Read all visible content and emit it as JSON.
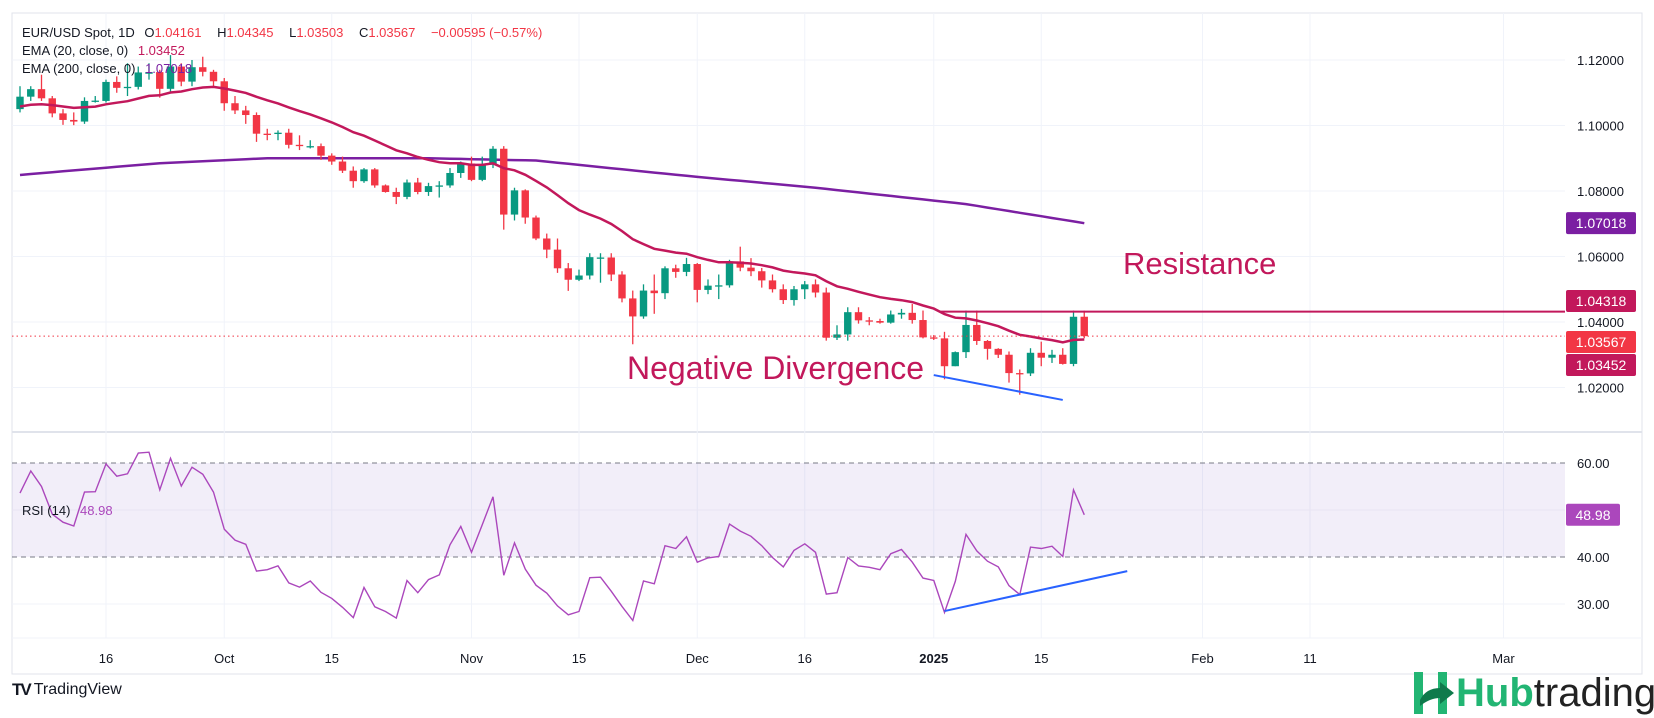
{
  "legend": {
    "symbol": "EUR/USD Spot, 1D",
    "open_label": "O",
    "open": "1.04161",
    "high_label": "H",
    "high": "1.04345",
    "low_label": "L",
    "low": "1.03503",
    "close_label": "C",
    "close": "1.03567",
    "change": "−0.00595 (−0.57%)",
    "ema20_label": "EMA (20, close, 0)",
    "ema20_value": "1.03452",
    "ema200_label": "EMA (200, close, 0)",
    "ema200_value": "1.07018"
  },
  "rsi_legend": {
    "label": "RSI (14)",
    "value": "48.98"
  },
  "annotations": {
    "resistance": "Resistance",
    "divergence": "Negative Divergence"
  },
  "footer": {
    "tradingview": "TradingView",
    "tv_mark": "TV",
    "hub_green": "Hub",
    "hub_dark": "trading"
  },
  "colors": {
    "up": "#089981",
    "down": "#f23645",
    "ema20": "#c2185b",
    "ema200": "#7b1fa2",
    "rsi": "#ab47bc",
    "trend": "#2962ff",
    "resistance": "#c2185b"
  },
  "chart_data": [
    {
      "type": "candlestick",
      "title": "EUR/USD Spot, 1D",
      "ylim": [
        1.005,
        1.1317
      ],
      "y_ticks": [
        "1.12000",
        "1.10000",
        "1.08000",
        "1.06000",
        "1.04000",
        "1.02000"
      ],
      "y_tick_values": [
        1.12,
        1.1,
        1.08,
        1.06,
        1.04,
        1.02
      ],
      "x_ticks": [
        {
          "label": "16",
          "index": 0
        },
        {
          "label": "Oct",
          "index": 11
        },
        {
          "label": "15",
          "index": 21
        },
        {
          "label": "Nov",
          "index": 34
        },
        {
          "label": "15",
          "index": 44
        },
        {
          "label": "Dec",
          "index": 55
        },
        {
          "label": "16",
          "index": 65
        },
        {
          "label": "2025",
          "index": 77,
          "bold": true
        },
        {
          "label": "15",
          "index": 87
        },
        {
          "label": "Feb",
          "index": 102
        },
        {
          "label": "11",
          "index": 112
        },
        {
          "label": "Mar",
          "index": 130
        }
      ],
      "first_index": -8,
      "candles": [
        [
          1.105,
          1.112,
          1.104,
          1.1088
        ],
        [
          1.1088,
          1.112,
          1.1075,
          1.1111
        ],
        [
          1.1111,
          1.1155,
          1.1075,
          1.1083
        ],
        [
          1.1083,
          1.109,
          1.1025,
          1.1037
        ],
        [
          1.1037,
          1.105,
          1.1002,
          1.1017
        ],
        [
          1.1017,
          1.104,
          1.1001,
          1.1012
        ],
        [
          1.1012,
          1.1086,
          1.1005,
          1.1075
        ],
        [
          1.1075,
          1.109,
          1.107,
          1.1076
        ],
        [
          1.1075,
          1.114,
          1.107,
          1.1133
        ],
        [
          1.1133,
          1.115,
          1.11,
          1.1115
        ],
        [
          1.1115,
          1.119,
          1.109,
          1.1118
        ],
        [
          1.1118,
          1.118,
          1.111,
          1.1162
        ],
        [
          1.1158,
          1.119,
          1.114,
          1.1163
        ],
        [
          1.1163,
          1.117,
          1.1085,
          1.1112
        ],
        [
          1.1112,
          1.1215,
          1.11,
          1.118
        ],
        [
          1.118,
          1.119,
          1.112,
          1.1134
        ],
        [
          1.1134,
          1.12,
          1.112,
          1.1178
        ],
        [
          1.1178,
          1.121,
          1.115,
          1.1164
        ],
        [
          1.1164,
          1.117,
          1.112,
          1.1135
        ],
        [
          1.1135,
          1.1145,
          1.1045,
          1.1068
        ],
        [
          1.1068,
          1.109,
          1.1035,
          1.1046
        ],
        [
          1.1046,
          1.106,
          1.1005,
          1.1032
        ],
        [
          1.1032,
          1.104,
          1.095,
          1.0975
        ],
        [
          1.0975,
          1.099,
          1.0955,
          1.0974
        ],
        [
          1.0974,
          1.0985,
          1.0955,
          1.0978
        ],
        [
          1.0978,
          1.099,
          1.093,
          1.0941
        ],
        [
          1.0941,
          1.097,
          1.0925,
          1.0937
        ],
        [
          1.0936,
          1.0955,
          1.093,
          1.0937
        ],
        [
          1.0937,
          1.0945,
          1.0895,
          1.0908
        ],
        [
          1.0908,
          1.0915,
          1.088,
          1.089
        ],
        [
          1.089,
          1.0905,
          1.0855,
          1.0862
        ],
        [
          1.0862,
          1.0875,
          1.081,
          1.083
        ],
        [
          1.083,
          1.087,
          1.0825,
          1.0866
        ],
        [
          1.0866,
          1.087,
          1.081,
          1.0817
        ],
        [
          1.0817,
          1.082,
          1.0795,
          1.0797
        ],
        [
          1.0797,
          1.081,
          1.076,
          1.0782
        ],
        [
          1.0782,
          1.0835,
          1.0775,
          1.0826
        ],
        [
          1.0826,
          1.084,
          1.079,
          1.0797
        ],
        [
          1.0797,
          1.0825,
          1.0785,
          1.0815
        ],
        [
          1.0815,
          1.083,
          1.078,
          1.0817
        ],
        [
          1.0817,
          1.087,
          1.081,
          1.0855
        ],
        [
          1.0855,
          1.089,
          1.084,
          1.0884
        ],
        [
          1.0884,
          1.0905,
          1.083,
          1.0834
        ],
        [
          1.0834,
          1.0905,
          1.083,
          1.088
        ],
        [
          1.088,
          1.0937,
          1.087,
          1.0929
        ],
        [
          1.0929,
          1.0937,
          1.0682,
          1.0728
        ],
        [
          1.0728,
          1.081,
          1.071,
          1.0802
        ],
        [
          1.0802,
          1.0805,
          1.07,
          1.0719
        ],
        [
          1.0719,
          1.0725,
          1.065,
          1.0655
        ],
        [
          1.0655,
          1.067,
          1.0595,
          1.0621
        ],
        [
          1.0621,
          1.0655,
          1.055,
          1.0564
        ],
        [
          1.0564,
          1.058,
          1.0495,
          1.0529
        ],
        [
          1.0529,
          1.056,
          1.0525,
          1.0542
        ],
        [
          1.0542,
          1.061,
          1.053,
          1.0598
        ],
        [
          1.0596,
          1.061,
          1.052,
          1.0597
        ],
        [
          1.0597,
          1.061,
          1.0525,
          1.0545
        ],
        [
          1.0545,
          1.0555,
          1.046,
          1.0472
        ],
        [
          1.0472,
          1.0496,
          1.0332,
          1.0417
        ],
        [
          1.0417,
          1.0515,
          1.041,
          1.0496
        ],
        [
          1.0496,
          1.0545,
          1.0425,
          1.0488
        ],
        [
          1.0488,
          1.057,
          1.047,
          1.0564
        ],
        [
          1.0564,
          1.0575,
          1.0535,
          1.0553
        ],
        [
          1.0553,
          1.0596,
          1.054,
          1.0577
        ],
        [
          1.0577,
          1.058,
          1.046,
          1.0498
        ],
        [
          1.0498,
          1.053,
          1.0485,
          1.0511
        ],
        [
          1.0509,
          1.0545,
          1.047,
          1.0512
        ],
        [
          1.0512,
          1.059,
          1.0505,
          1.0585
        ],
        [
          1.0585,
          1.063,
          1.0555,
          1.0566
        ],
        [
          1.0566,
          1.0595,
          1.054,
          1.0555
        ],
        [
          1.0555,
          1.0565,
          1.0505,
          1.0527
        ],
        [
          1.0527,
          1.0545,
          1.049,
          1.05
        ],
        [
          1.05,
          1.0515,
          1.0455,
          1.0467
        ],
        [
          1.0467,
          1.051,
          1.045,
          1.05
        ],
        [
          1.05,
          1.0525,
          1.047,
          1.0515
        ],
        [
          1.0515,
          1.053,
          1.0475,
          1.049
        ],
        [
          1.049,
          1.0505,
          1.0343,
          1.0352
        ],
        [
          1.0352,
          1.039,
          1.0345,
          1.0362
        ],
        [
          1.0362,
          1.0445,
          1.0343,
          1.043
        ],
        [
          1.043,
          1.0445,
          1.0395,
          1.0405
        ],
        [
          1.0405,
          1.0415,
          1.039,
          1.0403
        ],
        [
          1.0403,
          1.041,
          1.0395,
          1.0398
        ],
        [
          1.0398,
          1.0435,
          1.0395,
          1.0423
        ],
        [
          1.0423,
          1.044,
          1.041,
          1.0428
        ],
        [
          1.0428,
          1.0455,
          1.0395,
          1.0406
        ],
        [
          1.0406,
          1.0435,
          1.035,
          1.0353
        ],
        [
          1.0353,
          1.036,
          1.0345,
          1.035
        ],
        [
          1.035,
          1.037,
          1.0225,
          1.0265
        ],
        [
          1.0265,
          1.031,
          1.0265,
          1.0308
        ],
        [
          1.0308,
          1.0435,
          1.029,
          1.0391
        ],
        [
          1.0391,
          1.0435,
          1.033,
          1.0342
        ],
        [
          1.0342,
          1.0345,
          1.0285,
          1.0318
        ],
        [
          1.0318,
          1.032,
          1.029,
          1.03
        ],
        [
          1.03,
          1.031,
          1.0215,
          1.0244
        ],
        [
          1.0244,
          1.0255,
          1.0178,
          1.0243
        ],
        [
          1.0243,
          1.032,
          1.0235,
          1.0306
        ],
        [
          1.0306,
          1.034,
          1.0265,
          1.0291
        ],
        [
          1.0291,
          1.0315,
          1.0275,
          1.03
        ],
        [
          1.03,
          1.032,
          1.027,
          1.0272
        ],
        [
          1.0272,
          1.0435,
          1.0265,
          1.0416
        ],
        [
          1.04161,
          1.04345,
          1.03503,
          1.03567
        ]
      ],
      "ema20_seed": 1.1055,
      "ema200_points": [
        [
          -8,
          1.0849
        ],
        [
          5,
          1.0885
        ],
        [
          15,
          1.09
        ],
        [
          30,
          1.09
        ],
        [
          40,
          1.0893
        ],
        [
          55,
          1.0843
        ],
        [
          66,
          1.081
        ],
        [
          80,
          1.076
        ],
        [
          91,
          1.07018
        ]
      ],
      "resistance": {
        "value": 1.04318,
        "from_index": 77
      },
      "trendline": {
        "from": [
          77,
          1.0238
        ],
        "to": [
          89,
          1.0162
        ]
      },
      "price_badges": [
        {
          "value": 1.07018,
          "label": "1.07018",
          "color": "#7b1fa2"
        },
        {
          "value": 1.04318,
          "label": "1.04318",
          "color": "#c2185b"
        },
        {
          "value": 1.03567,
          "label": "1.03567",
          "color": "#f23645"
        },
        {
          "value": 1.03452,
          "label": "1.03452",
          "color": "#c2185b"
        }
      ]
    },
    {
      "type": "line",
      "title": "RSI (14)",
      "ylim": [
        22,
        65
      ],
      "y_ticks": [
        "60.00",
        "40.00",
        "30.00"
      ],
      "y_tick_values": [
        60,
        40,
        30
      ],
      "band": [
        40,
        60
      ],
      "first_index": -8,
      "values": [
        53.6,
        58.3,
        55.0,
        49.1,
        47.4,
        46.6,
        53.8,
        53.9,
        59.8,
        57.2,
        57.7,
        62.1,
        62.3,
        54.3,
        61.0,
        55.1,
        59.1,
        57.6,
        53.8,
        45.9,
        43.6,
        42.7,
        37.0,
        37.3,
        38.1,
        34.5,
        33.6,
        34.9,
        32.5,
        31.2,
        29.3,
        27.1,
        33.5,
        29.4,
        28.4,
        27.0,
        35.0,
        32.4,
        35.2,
        36.2,
        42.6,
        46.5,
        41.0,
        46.9,
        52.8,
        36.1,
        43.0,
        37.4,
        34.0,
        32.3,
        29.6,
        27.7,
        28.4,
        35.6,
        35.7,
        32.7,
        29.5,
        26.5,
        34.9,
        34.3,
        42.4,
        41.8,
        44.3,
        38.9,
        39.8,
        40.1,
        47.0,
        45.5,
        44.4,
        42.4,
        39.9,
        37.9,
        41.4,
        42.8,
        41.0,
        32.1,
        32.4,
        39.9,
        38.1,
        37.8,
        37.3,
        40.7,
        41.6,
        38.9,
        35.5,
        35.0,
        28.2,
        34.8,
        44.8,
        41.3,
        39.1,
        37.9,
        33.9,
        32.0,
        42.1,
        41.8,
        42.3,
        40.1,
        54.3,
        48.98
      ],
      "trendline": {
        "from": [
          78,
          28.5
        ],
        "to": [
          95,
          37.0
        ]
      },
      "badge": {
        "value": 48.98,
        "label": "48.98"
      }
    }
  ]
}
